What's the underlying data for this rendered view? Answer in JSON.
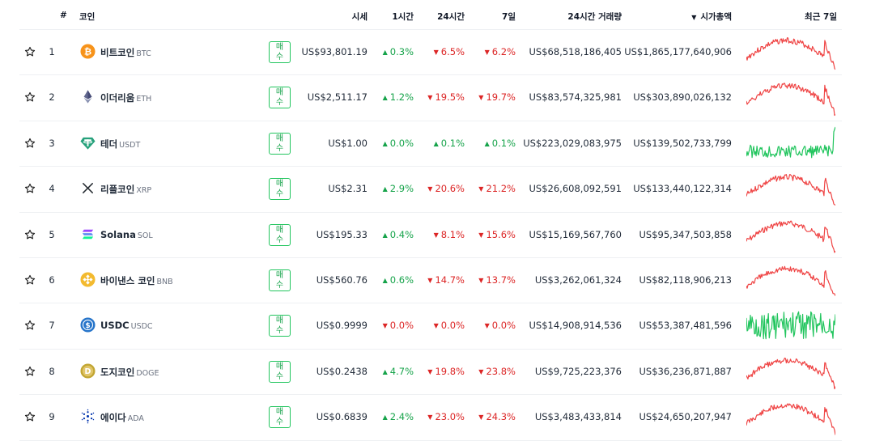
{
  "header": {
    "rank": "#",
    "coin": "코인",
    "price": "시세",
    "h1": "1시간",
    "h24": "24시간",
    "d7": "7일",
    "volume": "24시간 거래량",
    "sort_arrow": "▼",
    "mcap": "시가총액",
    "last7d": "최근 7일"
  },
  "buy_label_1": "매",
  "buy_label_2": "수",
  "colors": {
    "up": "#16a34a",
    "down": "#dc2626",
    "spark_up": "#22c55e",
    "spark_down": "#ef4444"
  },
  "rows": [
    {
      "rank": "1",
      "name": "비트코인",
      "symbol": "BTC",
      "icon": "bitcoin-icon",
      "price": "US$93,801.19",
      "h1": "0.3%",
      "h1_dir": "up",
      "h24": "6.5%",
      "h24_dir": "down",
      "d7": "6.2%",
      "d7_dir": "down",
      "volume": "US$68,518,186,405",
      "mcap": "US$1,865,177,640,906",
      "trend": "down"
    },
    {
      "rank": "2",
      "name": "이더리움",
      "symbol": "ETH",
      "icon": "ethereum-icon",
      "price": "US$2,511.17",
      "h1": "1.2%",
      "h1_dir": "up",
      "h24": "19.5%",
      "h24_dir": "down",
      "d7": "19.7%",
      "d7_dir": "down",
      "volume": "US$83,574,325,981",
      "mcap": "US$303,890,026,132",
      "trend": "down"
    },
    {
      "rank": "3",
      "name": "테더",
      "symbol": "USDT",
      "icon": "tether-icon",
      "price": "US$1.00",
      "h1": "0.0%",
      "h1_dir": "up",
      "h24": "0.1%",
      "h24_dir": "up",
      "d7": "0.1%",
      "d7_dir": "up",
      "volume": "US$223,029,083,975",
      "mcap": "US$139,502,733,799",
      "trend": "up"
    },
    {
      "rank": "4",
      "name": "리플코인",
      "symbol": "XRP",
      "icon": "xrp-icon",
      "price": "US$2.31",
      "h1": "2.9%",
      "h1_dir": "up",
      "h24": "20.6%",
      "h24_dir": "down",
      "d7": "21.2%",
      "d7_dir": "down",
      "volume": "US$26,608,092,591",
      "mcap": "US$133,440,122,314",
      "trend": "down"
    },
    {
      "rank": "5",
      "name": "Solana",
      "symbol": "SOL",
      "icon": "solana-icon",
      "price": "US$195.33",
      "h1": "0.4%",
      "h1_dir": "up",
      "h24": "8.1%",
      "h24_dir": "down",
      "d7": "15.6%",
      "d7_dir": "down",
      "volume": "US$15,169,567,760",
      "mcap": "US$95,347,503,858",
      "trend": "down"
    },
    {
      "rank": "6",
      "name": "바이낸스 코인",
      "symbol": "BNB",
      "icon": "bnb-icon",
      "price": "US$560.76",
      "h1": "0.6%",
      "h1_dir": "up",
      "h24": "14.7%",
      "h24_dir": "down",
      "d7": "13.7%",
      "d7_dir": "down",
      "volume": "US$3,262,061,324",
      "mcap": "US$82,118,906,213",
      "trend": "down"
    },
    {
      "rank": "7",
      "name": "USDC",
      "symbol": "USDC",
      "icon": "usdc-icon",
      "price": "US$0.9999",
      "h1": "0.0%",
      "h1_dir": "down",
      "h24": "0.0%",
      "h24_dir": "down",
      "d7": "0.0%",
      "d7_dir": "down",
      "volume": "US$14,908,914,536",
      "mcap": "US$53,387,481,596",
      "trend": "flat"
    },
    {
      "rank": "8",
      "name": "도지코인",
      "symbol": "DOGE",
      "icon": "dogecoin-icon",
      "price": "US$0.2438",
      "h1": "4.7%",
      "h1_dir": "up",
      "h24": "19.8%",
      "h24_dir": "down",
      "d7": "23.8%",
      "d7_dir": "down",
      "volume": "US$9,725,223,376",
      "mcap": "US$36,236,871,887",
      "trend": "down"
    },
    {
      "rank": "9",
      "name": "에이다",
      "symbol": "ADA",
      "icon": "cardano-icon",
      "price": "US$0.6839",
      "h1": "2.4%",
      "h1_dir": "up",
      "h24": "23.0%",
      "h24_dir": "down",
      "d7": "24.3%",
      "d7_dir": "down",
      "volume": "US$3,483,433,814",
      "mcap": "US$24,650,207,947",
      "trend": "down"
    }
  ]
}
